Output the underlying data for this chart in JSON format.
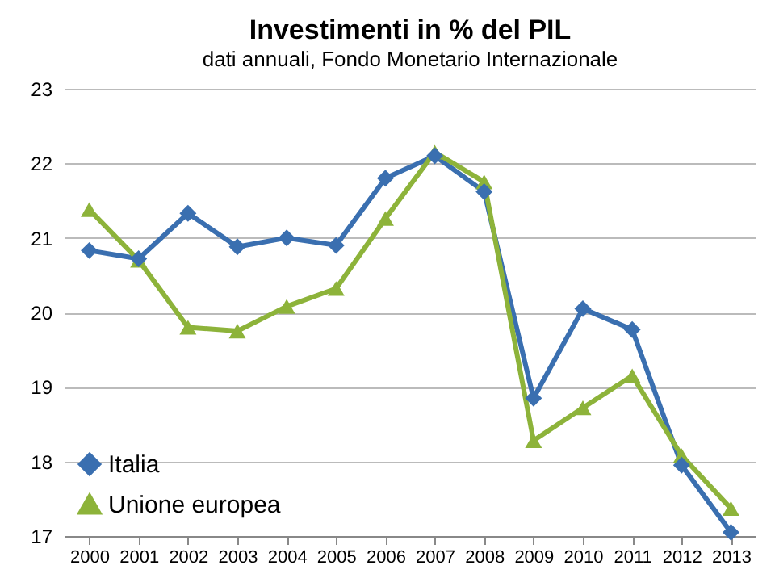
{
  "chart_data": {
    "type": "line",
    "title": "Investimenti in % del PIL",
    "subtitle": "dati annuali, Fondo Monetario Internazionale",
    "categories": [
      "2000",
      "2001",
      "2002",
      "2003",
      "2004",
      "2005",
      "2006",
      "2007",
      "2008",
      "2009",
      "2010",
      "2011",
      "2012",
      "2013"
    ],
    "series": [
      {
        "name": "Italia",
        "color": "#3a6fb0",
        "marker": "diamond",
        "values": [
          20.83,
          20.72,
          21.33,
          20.88,
          21.0,
          20.9,
          21.8,
          22.1,
          21.62,
          18.85,
          20.05,
          19.77,
          17.95,
          17.05
        ]
      },
      {
        "name": "Unione europea",
        "color": "#8db33a",
        "marker": "triangle",
        "values": [
          21.38,
          20.7,
          19.8,
          19.75,
          20.08,
          20.32,
          21.26,
          22.15,
          21.75,
          18.28,
          18.72,
          19.15,
          18.08,
          17.37
        ]
      }
    ],
    "ylim": [
      17,
      23
    ],
    "yticks": [
      17,
      18,
      19,
      20,
      21,
      22,
      23
    ],
    "grid": "y",
    "legend": "bottom left",
    "line_style": "solid"
  }
}
